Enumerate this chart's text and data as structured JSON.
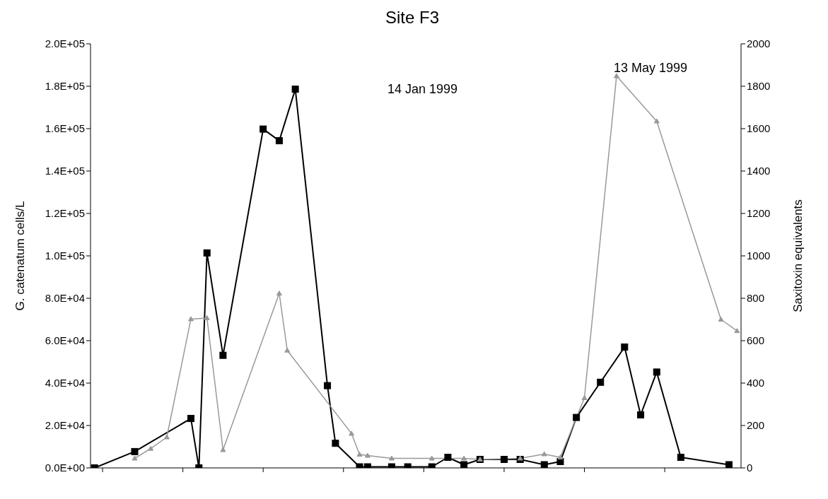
{
  "chart_data": {
    "type": "line",
    "title": "Site F3",
    "ylabel": "G. catenatum cells/L",
    "y2label": "Saxitoxin equivalents",
    "categories": [
      null,
      null,
      null,
      null,
      null,
      null,
      null,
      null,
      null,
      null,
      null,
      null,
      null,
      null,
      null,
      null,
      null,
      null,
      null,
      null,
      null,
      null,
      null,
      null,
      null,
      null,
      null,
      null,
      null,
      null,
      null,
      null,
      null,
      null,
      null,
      null,
      null,
      null,
      null,
      null,
      null,
      null,
      null,
      null,
      null,
      null,
      null,
      null,
      null,
      null,
      null,
      null,
      null,
      null,
      null,
      null,
      null,
      null,
      null,
      null,
      null,
      null,
      null,
      null,
      null,
      null,
      null,
      null,
      null,
      null,
      null,
      null,
      null,
      null,
      null,
      null,
      null,
      null,
      null,
      null,
      null
    ],
    "ylim": [
      0,
      200000
    ],
    "yticks": [
      {
        "value": 0,
        "label": "0.0E+00"
      },
      {
        "value": 20000,
        "label": "2.0E+04"
      },
      {
        "value": 40000,
        "label": "4.0E+04"
      },
      {
        "value": 60000,
        "label": "6.0E+04"
      },
      {
        "value": 80000,
        "label": "8.0E+04"
      },
      {
        "value": 100000,
        "label": "1.0E+05"
      },
      {
        "value": 120000,
        "label": "1.2E+05"
      },
      {
        "value": 140000,
        "label": "1.4E+05"
      },
      {
        "value": 160000,
        "label": "1.6E+05"
      },
      {
        "value": 180000,
        "label": "1.8E+05"
      },
      {
        "value": 200000,
        "label": "2.0E+05"
      }
    ],
    "y2lim": [
      0,
      2000
    ],
    "y2ticks": [
      0,
      200,
      400,
      600,
      800,
      1000,
      1200,
      1400,
      1600,
      1800,
      2000
    ],
    "grid": false,
    "legend": false,
    "line_style": "solid",
    "series": [
      {
        "color": "#000000",
        "marker": "square",
        "values": [
          0,
          null,
          null,
          null,
          null,
          7700,
          null,
          null,
          null,
          null,
          null,
          null,
          23300,
          0,
          101400,
          null,
          53100,
          null,
          null,
          null,
          null,
          159800,
          null,
          154300,
          null,
          178600,
          null,
          null,
          null,
          38800,
          11600,
          null,
          null,
          500,
          500,
          null,
          null,
          500,
          null,
          500,
          null,
          null,
          500,
          null,
          5000,
          null,
          1500,
          null,
          4000,
          null,
          null,
          4000,
          null,
          4000,
          null,
          null,
          1500,
          null,
          3000,
          null,
          23800,
          null,
          null,
          40400,
          null,
          null,
          57000,
          null,
          25000,
          null,
          45200,
          null,
          null,
          5000,
          null,
          null,
          null,
          null,
          null,
          1500,
          null
        ]
      },
      {
        "color": "#999999",
        "marker": "triangle",
        "axis": "y2",
        "values": [
          null,
          null,
          null,
          null,
          null,
          45,
          null,
          91,
          null,
          145,
          null,
          null,
          702,
          null,
          707,
          null,
          85,
          null,
          null,
          null,
          null,
          null,
          null,
          823,
          554,
          null,
          null,
          null,
          null,
          null,
          null,
          null,
          162,
          63,
          58,
          null,
          null,
          45,
          null,
          null,
          null,
          null,
          45,
          null,
          null,
          null,
          45,
          null,
          40,
          null,
          null,
          null,
          null,
          45,
          null,
          null,
          65,
          null,
          50,
          null,
          null,
          330,
          null,
          null,
          null,
          1848,
          null,
          null,
          null,
          null,
          1635,
          null,
          null,
          null,
          null,
          null,
          null,
          null,
          700,
          null,
          646
        ]
      }
    ],
    "annotations": [
      "14 Jan 1999",
      "13 May 1999"
    ]
  }
}
